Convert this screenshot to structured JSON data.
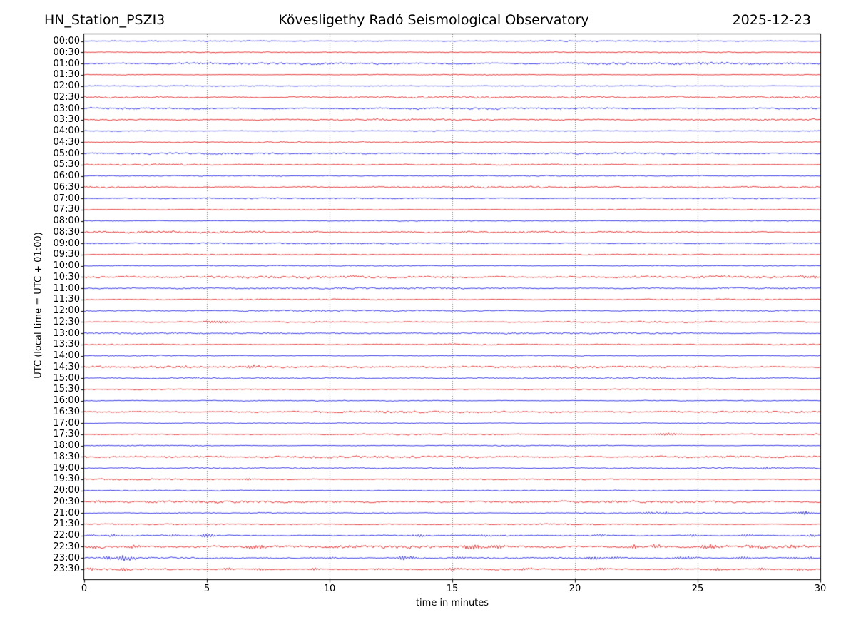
{
  "header": {
    "station": "HN_Station_PSZI3",
    "observatory": "Kövesligethy Radó Seismological Observatory",
    "date": "2025-12-23"
  },
  "axes": {
    "ylabel": "UTC (local time = UTC + 01:00)",
    "xlabel": "time in minutes",
    "xticks": [
      "0",
      "5",
      "10",
      "15",
      "20",
      "25",
      "30"
    ],
    "x_range_minutes": [
      0,
      30
    ],
    "grid": "vertical dotted every 5 minutes"
  },
  "colors": {
    "trace_blue": "#0000dd",
    "trace_red": "#dd0000",
    "grid": "#808080",
    "axis": "#000000",
    "background": "#ffffff"
  },
  "chart_data": {
    "type": "line",
    "subtype": "helicorder-dayplot",
    "title": "Kövesligethy Radó Seismological Observatory",
    "station": "HN_Station_PSZI3",
    "date": "2025-12-23",
    "xlabel": "time in minutes",
    "ylabel": "UTC (local time = UTC + 01:00)",
    "x_ticks_minutes": [
      0,
      5,
      10,
      15,
      20,
      25,
      30
    ],
    "minutes_per_row": 30,
    "row_note": "noise = background noise half-amplitude in px; events = [minute, amplitude_px, width_min]",
    "rows": [
      {
        "time": "00:00",
        "color": "blue",
        "noise": 0.7,
        "events": []
      },
      {
        "time": "00:30",
        "color": "red",
        "noise": 0.6,
        "events": []
      },
      {
        "time": "01:00",
        "color": "blue",
        "noise": 1.6,
        "events": []
      },
      {
        "time": "01:30",
        "color": "red",
        "noise": 0.6,
        "events": []
      },
      {
        "time": "02:00",
        "color": "blue",
        "noise": 0.6,
        "events": []
      },
      {
        "time": "02:30",
        "color": "red",
        "noise": 1.4,
        "events": []
      },
      {
        "time": "03:00",
        "color": "blue",
        "noise": 1.4,
        "events": []
      },
      {
        "time": "03:30",
        "color": "red",
        "noise": 1.0,
        "events": []
      },
      {
        "time": "04:00",
        "color": "blue",
        "noise": 0.6,
        "events": []
      },
      {
        "time": "04:30",
        "color": "red",
        "noise": 0.8,
        "events": []
      },
      {
        "time": "05:00",
        "color": "blue",
        "noise": 1.1,
        "events": []
      },
      {
        "time": "05:30",
        "color": "red",
        "noise": 0.9,
        "events": []
      },
      {
        "time": "06:00",
        "color": "blue",
        "noise": 0.6,
        "events": []
      },
      {
        "time": "06:30",
        "color": "red",
        "noise": 1.2,
        "events": []
      },
      {
        "time": "07:00",
        "color": "blue",
        "noise": 0.9,
        "events": []
      },
      {
        "time": "07:30",
        "color": "red",
        "noise": 0.6,
        "events": []
      },
      {
        "time": "08:00",
        "color": "blue",
        "noise": 0.6,
        "events": []
      },
      {
        "time": "08:30",
        "color": "red",
        "noise": 1.3,
        "events": []
      },
      {
        "time": "09:00",
        "color": "blue",
        "noise": 0.9,
        "events": []
      },
      {
        "time": "09:30",
        "color": "red",
        "noise": 0.7,
        "events": []
      },
      {
        "time": "10:00",
        "color": "blue",
        "noise": 0.6,
        "events": []
      },
      {
        "time": "10:30",
        "color": "red",
        "noise": 1.8,
        "events": [
          [
            29.5,
            1.5,
            0.4
          ]
        ]
      },
      {
        "time": "11:00",
        "color": "blue",
        "noise": 1.0,
        "events": []
      },
      {
        "time": "11:30",
        "color": "red",
        "noise": 0.9,
        "events": []
      },
      {
        "time": "12:00",
        "color": "blue",
        "noise": 1.0,
        "events": []
      },
      {
        "time": "12:30",
        "color": "red",
        "noise": 0.9,
        "events": [
          [
            5.4,
            1.8,
            0.5
          ]
        ]
      },
      {
        "time": "13:00",
        "color": "blue",
        "noise": 0.9,
        "events": []
      },
      {
        "time": "13:30",
        "color": "red",
        "noise": 0.9,
        "events": []
      },
      {
        "time": "14:00",
        "color": "blue",
        "noise": 0.6,
        "events": []
      },
      {
        "time": "14:30",
        "color": "red",
        "noise": 1.4,
        "events": [
          [
            6.9,
            1.8,
            0.4
          ]
        ]
      },
      {
        "time": "15:00",
        "color": "blue",
        "noise": 0.9,
        "events": []
      },
      {
        "time": "15:30",
        "color": "red",
        "noise": 0.7,
        "events": []
      },
      {
        "time": "16:00",
        "color": "blue",
        "noise": 0.6,
        "events": []
      },
      {
        "time": "16:30",
        "color": "red",
        "noise": 1.3,
        "events": []
      },
      {
        "time": "17:00",
        "color": "blue",
        "noise": 0.6,
        "events": []
      },
      {
        "time": "17:30",
        "color": "red",
        "noise": 0.8,
        "events": [
          [
            23.8,
            1.6,
            0.6
          ]
        ]
      },
      {
        "time": "18:00",
        "color": "blue",
        "noise": 0.6,
        "events": []
      },
      {
        "time": "18:30",
        "color": "red",
        "noise": 1.5,
        "events": []
      },
      {
        "time": "19:00",
        "color": "blue",
        "noise": 0.9,
        "events": [
          [
            15.3,
            1.6,
            0.3
          ],
          [
            27.8,
            1.2,
            0.3
          ]
        ]
      },
      {
        "time": "19:30",
        "color": "red",
        "noise": 0.9,
        "events": [
          [
            6.6,
            1.2,
            0.3
          ],
          [
            13.1,
            1.0,
            0.3
          ]
        ]
      },
      {
        "time": "20:00",
        "color": "blue",
        "noise": 0.6,
        "events": []
      },
      {
        "time": "20:30",
        "color": "red",
        "noise": 1.5,
        "events": [
          [
            0.7,
            1.4,
            0.3
          ]
        ]
      },
      {
        "time": "21:00",
        "color": "blue",
        "noise": 0.7,
        "events": [
          [
            23.0,
            1.2,
            0.5
          ],
          [
            23.7,
            2.4,
            0.15
          ],
          [
            29.1,
            1.2,
            0.2
          ],
          [
            29.4,
            2.2,
            0.2
          ]
        ]
      },
      {
        "time": "21:30",
        "color": "red",
        "noise": 0.8,
        "events": []
      },
      {
        "time": "22:00",
        "color": "blue",
        "noise": 0.9,
        "events": [
          [
            1.2,
            1.4,
            0.25
          ],
          [
            3.7,
            1.5,
            0.2
          ],
          [
            4.95,
            2.6,
            0.18
          ],
          [
            5.2,
            2.2,
            0.15
          ],
          [
            13.6,
            1.4,
            0.35
          ],
          [
            16.4,
            1.2,
            0.3
          ],
          [
            21.0,
            1.4,
            0.3
          ],
          [
            24.8,
            1.4,
            0.3
          ],
          [
            27.0,
            1.6,
            0.25
          ],
          [
            29.7,
            1.5,
            0.2
          ]
        ]
      },
      {
        "time": "22:30",
        "color": "red",
        "noise": 1.8,
        "events": [
          [
            0.4,
            2.0,
            0.25
          ],
          [
            2.0,
            1.8,
            0.3
          ],
          [
            7.0,
            2.0,
            0.5
          ],
          [
            15.8,
            2.8,
            0.4
          ],
          [
            16.8,
            2.6,
            0.4
          ],
          [
            22.4,
            2.6,
            0.18
          ],
          [
            23.3,
            2.6,
            0.2
          ],
          [
            25.5,
            2.2,
            0.5
          ],
          [
            27.4,
            2.2,
            0.4
          ],
          [
            28.8,
            1.5,
            0.3
          ]
        ]
      },
      {
        "time": "23:00",
        "color": "blue",
        "noise": 1.0,
        "events": [
          [
            1.0,
            2.2,
            0.25
          ],
          [
            1.55,
            3.4,
            0.2
          ],
          [
            1.9,
            2.0,
            0.2
          ],
          [
            10.0,
            1.4,
            0.25
          ],
          [
            12.95,
            2.8,
            0.2
          ],
          [
            13.4,
            2.0,
            0.25
          ],
          [
            15.3,
            1.5,
            0.3
          ],
          [
            20.8,
            1.8,
            0.4
          ],
          [
            21.5,
            1.6,
            0.3
          ],
          [
            24.5,
            1.8,
            0.5
          ],
          [
            26.9,
            1.8,
            0.4
          ],
          [
            28.9,
            1.4,
            0.3
          ],
          [
            29.6,
            1.6,
            0.2
          ]
        ]
      },
      {
        "time": "23:30",
        "color": "red",
        "noise": 1.2,
        "events": [
          [
            0.35,
            1.8,
            0.2
          ],
          [
            1.6,
            1.8,
            0.2
          ],
          [
            5.9,
            1.8,
            0.22
          ],
          [
            7.1,
            1.4,
            0.3
          ],
          [
            9.4,
            1.6,
            0.2
          ],
          [
            12.0,
            1.2,
            0.3
          ],
          [
            15.0,
            1.4,
            0.3
          ],
          [
            18.1,
            1.3,
            0.3
          ],
          [
            21.1,
            1.4,
            0.3
          ],
          [
            24.1,
            1.3,
            0.3
          ],
          [
            25.8,
            1.7,
            0.22
          ],
          [
            27.6,
            1.3,
            0.3
          ],
          [
            29.1,
            1.4,
            0.25
          ]
        ]
      }
    ]
  }
}
